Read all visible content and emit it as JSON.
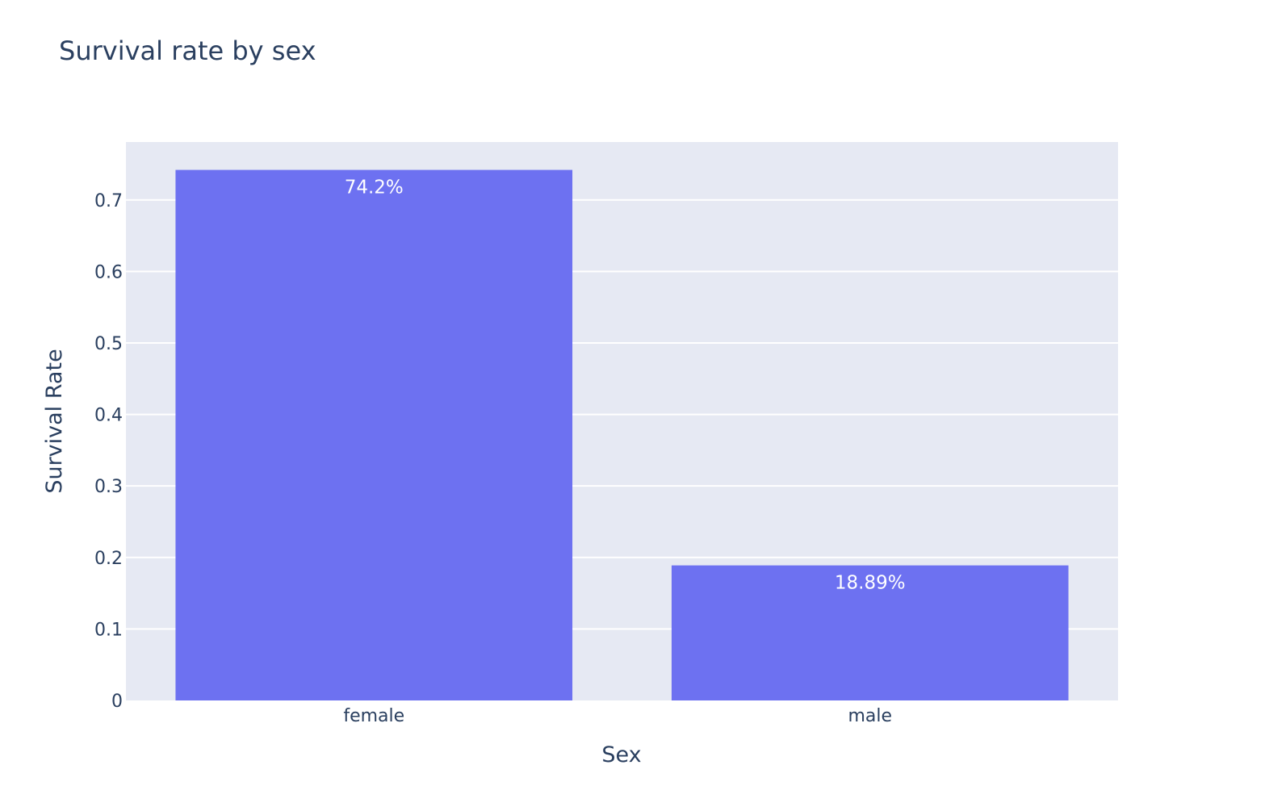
{
  "chart_data": {
    "type": "bar",
    "title": "Survival rate by sex",
    "xlabel": "Sex",
    "ylabel": "Survival Rate",
    "categories": [
      "female",
      "male"
    ],
    "values": [
      0.742,
      0.1889
    ],
    "data_labels": [
      "74.2%",
      "18.89%"
    ],
    "yticks": [
      0,
      0.1,
      0.2,
      0.3,
      0.4,
      0.5,
      0.6,
      0.7
    ],
    "ytick_labels": [
      "0",
      "0.1",
      "0.2",
      "0.3",
      "0.4",
      "0.5",
      "0.6",
      "0.7"
    ],
    "ylim": [
      0,
      0.781
    ],
    "grid": true,
    "legend": "none",
    "colors": {
      "bar": "#6d71f1",
      "plot_bg": "#e6e9f3",
      "grid": "#ffffff",
      "text": "#2a3f5f"
    }
  }
}
